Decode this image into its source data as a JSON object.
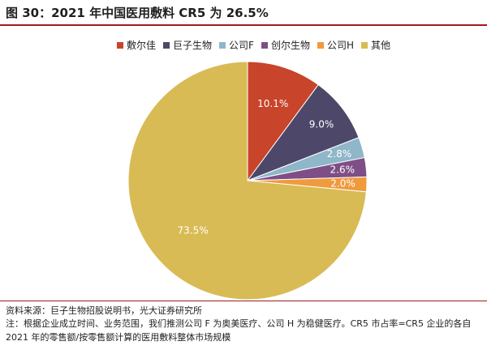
{
  "header": {
    "title": "图 30：2021 年中国医用敷料 CR5 为 26.5%"
  },
  "footer": {
    "source": "资料来源：巨子生物招股说明书，光大证券研究所",
    "note": "注：根据企业成立时间、业务范围，我们推测公司 F 为奥美医疗、公司 H 为稳健医疗。CR5 市占率=CR5 企业的各自 2021 年的零售额/按零售额计算的医用敷料整体市场规模"
  },
  "chart_data": {
    "type": "pie",
    "title": "",
    "legend_position": "top",
    "start_angle": "12 o'clock, clockwise",
    "slices": [
      {
        "label": "敷尔佳",
        "value": 10.1,
        "value_label": "10.1%",
        "color": "#c8442a",
        "label_color": "#ffffff"
      },
      {
        "label": "巨子生物",
        "value": 9.0,
        "value_label": "9.0%",
        "color": "#4d4869",
        "label_color": "#ffffff"
      },
      {
        "label": "公司F",
        "value": 2.8,
        "value_label": "2.8%",
        "color": "#8fb6c9",
        "label_color": "#ffffff"
      },
      {
        "label": "创尔生物",
        "value": 2.6,
        "value_label": "2.6%",
        "color": "#7e4f86",
        "label_color": "#ffffff"
      },
      {
        "label": "公司H",
        "value": 2.0,
        "value_label": "2.0%",
        "color": "#f09a3e",
        "label_color": "#ffffff"
      },
      {
        "label": "其他",
        "value": 73.5,
        "value_label": "73.5%",
        "color": "#d9bb55",
        "label_color": "#ffffff"
      }
    ]
  }
}
